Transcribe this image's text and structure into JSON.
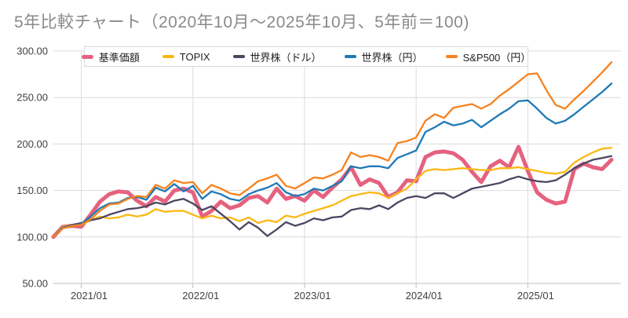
{
  "title": "5年比較チャート（2020年10月〜2025年10月、5年前＝100)",
  "chart_data": {
    "type": "line",
    "title": "5年比較チャート（2020年10月〜2025年10月、5年前＝100)",
    "index_base": "5年前＝100",
    "x_start": "2020/10",
    "x_end": "2025/10",
    "x_frequency": "monthly",
    "n_points": 61,
    "x_tick_labels": [
      "2021/01",
      "2022/01",
      "2023/01",
      "2024/01",
      "2025/01"
    ],
    "x_tick_indices": [
      3,
      15,
      27,
      39,
      51
    ],
    "ylim": [
      50,
      300
    ],
    "y_ticks": [
      300,
      250,
      200,
      150,
      100,
      50
    ],
    "y_tick_labels": [
      "300.00",
      "250.00",
      "200.00",
      "150.00",
      "100.00",
      "50.00"
    ],
    "grid": true,
    "legend_position": "top",
    "grid_color": "#dcdcdc",
    "axis_text_color": "#404040",
    "series": [
      {
        "name": "基準価額",
        "color": "#e5627f",
        "width": 5,
        "values": [
          100,
          111,
          112,
          111,
          124,
          138,
          146,
          149,
          148,
          139,
          133,
          143,
          138,
          150,
          152,
          148,
          122,
          128,
          138,
          131,
          134,
          142,
          144,
          137,
          152,
          141,
          144,
          139,
          150,
          143,
          153,
          162,
          175,
          156,
          162,
          158,
          143,
          148,
          161,
          160,
          186,
          191,
          192,
          190,
          183,
          170,
          159,
          176,
          182,
          175,
          197,
          171,
          148,
          140,
          136,
          138,
          173,
          179,
          175,
          173,
          183
        ]
      },
      {
        "name": "TOPIX",
        "color": "#fbb713",
        "width": 2.3,
        "values": [
          100,
          111,
          113,
          113,
          118,
          122,
          120,
          121,
          124,
          122,
          124,
          130,
          127,
          128,
          128,
          124,
          120,
          123,
          120,
          121,
          117,
          121,
          115,
          118,
          116,
          123,
          121,
          125,
          128,
          131,
          134,
          139,
          144,
          146,
          148,
          147,
          142,
          147,
          152,
          162,
          171,
          173,
          172,
          173,
          174,
          173,
          172,
          172,
          174,
          174,
          175,
          173,
          171,
          169,
          168,
          170,
          180,
          186,
          191,
          195,
          196
        ]
      },
      {
        "name": "世界株（ドル）",
        "color": "#4c4660",
        "width": 2.3,
        "values": [
          100,
          110,
          113,
          115,
          118,
          120,
          124,
          127,
          130,
          131,
          133,
          137,
          135,
          139,
          141,
          136,
          129,
          133,
          125,
          117,
          108,
          116,
          110,
          101,
          108,
          116,
          112,
          115,
          120,
          118,
          121,
          122,
          129,
          131,
          130,
          134,
          130,
          137,
          142,
          144,
          142,
          147,
          147,
          142,
          147,
          152,
          154,
          156,
          158,
          162,
          165,
          162,
          160,
          159,
          161,
          167,
          174,
          179,
          183,
          185,
          187
        ]
      },
      {
        "name": "世界株（円）",
        "color": "#1f79b6",
        "width": 2.3,
        "values": [
          100,
          110,
          112,
          114,
          122,
          131,
          136,
          137,
          142,
          143,
          140,
          153,
          149,
          157,
          149,
          155,
          141,
          149,
          146,
          141,
          139,
          146,
          150,
          153,
          158,
          148,
          144,
          146,
          152,
          150,
          155,
          160,
          176,
          174,
          176,
          176,
          174,
          185,
          189,
          193,
          213,
          218,
          224,
          220,
          222,
          226,
          218,
          225,
          232,
          238,
          246,
          247,
          238,
          228,
          222,
          225,
          232,
          240,
          248,
          256,
          265
        ]
      },
      {
        "name": "S&P500（円）",
        "color": "#f6821e",
        "width": 2.3,
        "values": [
          100,
          109,
          112,
          113,
          119,
          128,
          135,
          136,
          141,
          144,
          143,
          156,
          152,
          161,
          158,
          159,
          147,
          156,
          152,
          147,
          145,
          152,
          160,
          163,
          167,
          155,
          152,
          158,
          164,
          163,
          167,
          172,
          191,
          186,
          188,
          186,
          182,
          201,
          203,
          207,
          225,
          232,
          228,
          239,
          241,
          243,
          238,
          243,
          252,
          259,
          267,
          275,
          276,
          258,
          242,
          238,
          248,
          257,
          267,
          277,
          288
        ]
      }
    ]
  }
}
